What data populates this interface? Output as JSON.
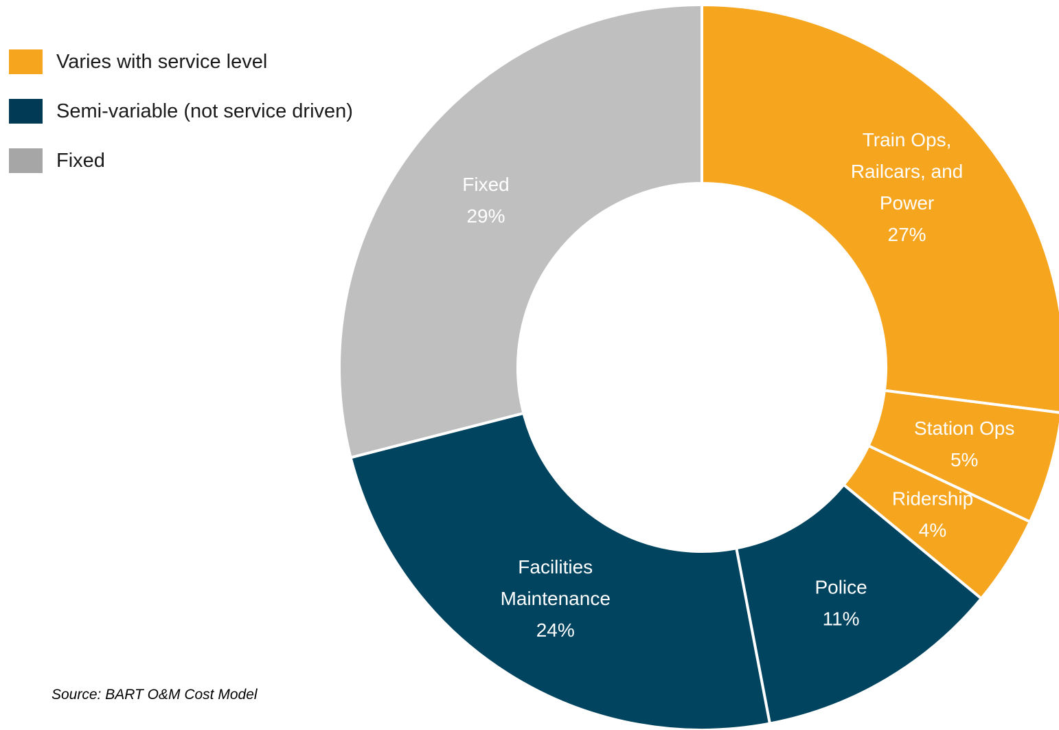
{
  "chart_data": {
    "type": "pie",
    "donut": true,
    "source": "Source: BART O&M Cost Model",
    "legend": [
      {
        "label": "Varies with service level",
        "color": "#f5a51e"
      },
      {
        "label": "Semi-variable (not service driven)",
        "color": "#003a55"
      },
      {
        "label": "Fixed",
        "color": "#a6a6a6"
      }
    ],
    "slices": [
      {
        "lines": [
          "Train Ops,",
          "Railcars, and",
          "Power",
          "27%"
        ],
        "value": 27,
        "group": "Varies with service level",
        "color": "#f5a51e"
      },
      {
        "lines": [
          "Station Ops",
          "5%"
        ],
        "value": 5,
        "group": "Varies with service level",
        "color": "#f5a51e"
      },
      {
        "lines": [
          "Ridership",
          "4%"
        ],
        "value": 4,
        "group": "Varies with service level",
        "color": "#f5a51e"
      },
      {
        "lines": [
          "Police",
          "11%"
        ],
        "value": 11,
        "group": "Semi-variable (not service driven)",
        "color": "#00445f"
      },
      {
        "lines": [
          "Facilities",
          "Maintenance",
          "24%"
        ],
        "value": 24,
        "group": "Semi-variable (not service driven)",
        "color": "#00445f"
      },
      {
        "lines": [
          "Fixed",
          "29%"
        ],
        "value": 29,
        "group": "Fixed",
        "color": "#bfbfbf"
      }
    ]
  }
}
